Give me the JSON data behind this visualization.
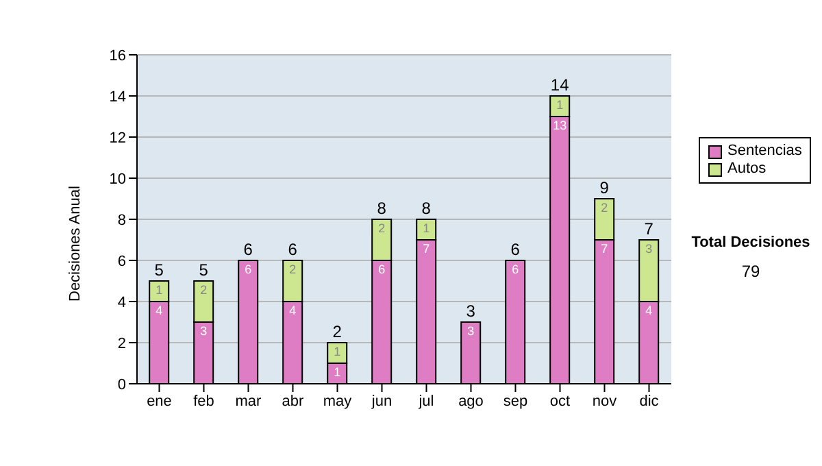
{
  "chart_data": {
    "type": "bar",
    "ylabel": "Decisiones Anual",
    "categories": [
      "ene",
      "feb",
      "mar",
      "abr",
      "may",
      "jun",
      "jul",
      "ago",
      "sep",
      "oct",
      "nov",
      "dic"
    ],
    "series": [
      {
        "name": "Sentencias",
        "color": "#de7cc4",
        "values": [
          4,
          3,
          6,
          4,
          1,
          6,
          7,
          3,
          6,
          13,
          7,
          4
        ]
      },
      {
        "name": "Autos",
        "color": "#cde690",
        "values": [
          1,
          2,
          null,
          2,
          1,
          2,
          1,
          null,
          null,
          1,
          2,
          3
        ]
      }
    ],
    "stacked": true,
    "data_labels": true,
    "totals": [
      "5",
      "5",
      "6",
      "6",
      "2",
      "8",
      "8",
      "3",
      "6",
      "14",
      "9",
      "7"
    ],
    "ylim": [
      0,
      16
    ],
    "yticks": [
      0,
      2,
      4,
      6,
      8,
      10,
      12,
      14,
      16
    ],
    "grid": "y",
    "legend": "right",
    "annotations": [
      "Total Decisiones",
      "79"
    ]
  }
}
